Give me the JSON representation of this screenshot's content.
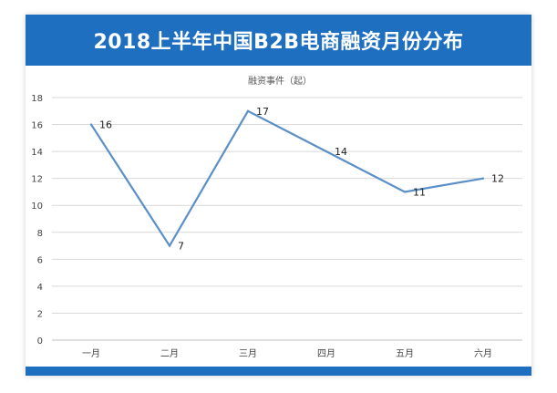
{
  "colors": {
    "banner": "#1f6fc0",
    "line": "#5b8fc7",
    "grid": "#d9d9d9",
    "axis": "#bfbfbf"
  },
  "chart_data": {
    "type": "line",
    "title": "2018上半年中国B2B电商融资月份分布",
    "series_title": "融资事件（起）",
    "categories": [
      "一月",
      "二月",
      "三月",
      "四月",
      "五月",
      "六月"
    ],
    "series": [
      {
        "name": "融资事件（起）",
        "values": [
          16,
          7,
          17,
          14,
          11,
          12
        ]
      }
    ],
    "data_labels": [
      "16",
      "7",
      "17",
      "14",
      "11",
      "12"
    ],
    "ylim": [
      0,
      18
    ],
    "yticks": [
      0,
      2,
      4,
      6,
      8,
      10,
      12,
      14,
      16,
      18
    ],
    "ytick_labels": [
      "0",
      "2",
      "4",
      "6",
      "8",
      "10",
      "12",
      "14",
      "16",
      "18"
    ],
    "xlabel": "",
    "ylabel": "",
    "grid": true
  }
}
